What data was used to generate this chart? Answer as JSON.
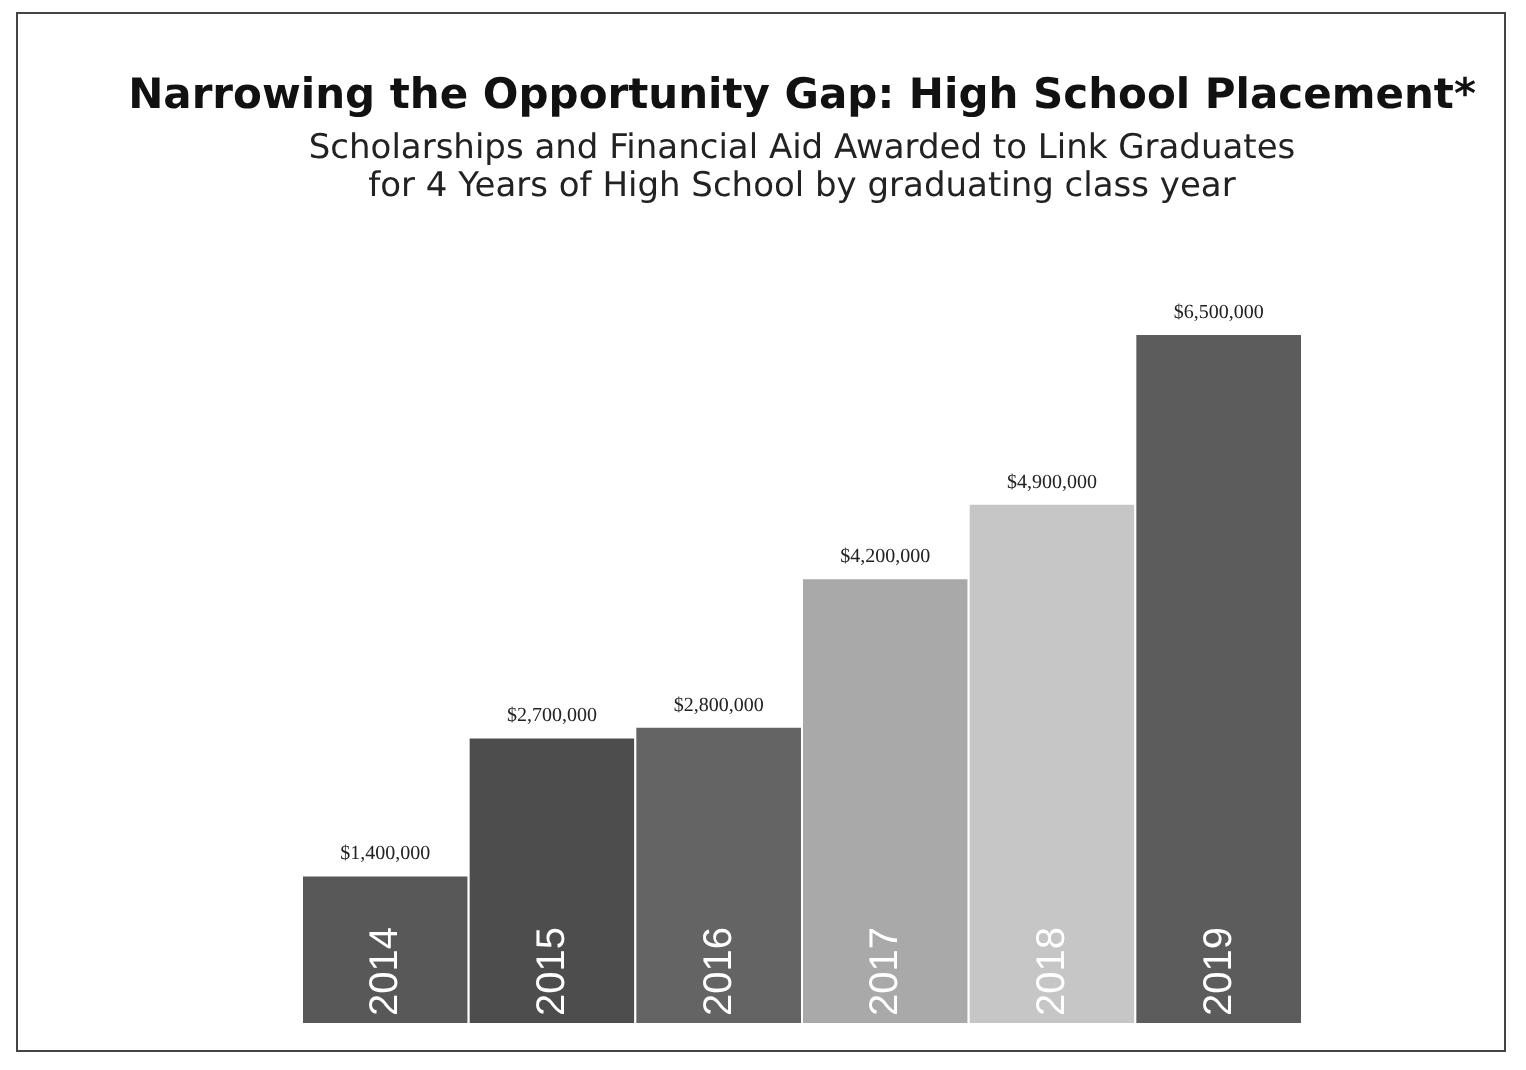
{
  "chart_data": {
    "type": "bar",
    "title": "Narrowing the Opportunity Gap: High School Placement*",
    "subtitle": [
      "Scholarships and Financial Aid Awarded to Link Graduates",
      "for 4 Years of High School by graduating class year"
    ],
    "categories": [
      "2014",
      "2015",
      "2016",
      "2017",
      "2018",
      "2019"
    ],
    "values": [
      1400000,
      2700000,
      2800000,
      4200000,
      4900000,
      6500000
    ],
    "colors": [
      "#585858",
      "#4d4d4d",
      "#646464",
      "#a9a9a9",
      "#c6c6c6",
      "#5c5c5c"
    ],
    "value_labels": [
      "$1,400,000",
      "$2,700,000",
      "$2,800,000",
      "$4,200,000",
      "$4,900,000",
      "$6,500,000"
    ]
  }
}
